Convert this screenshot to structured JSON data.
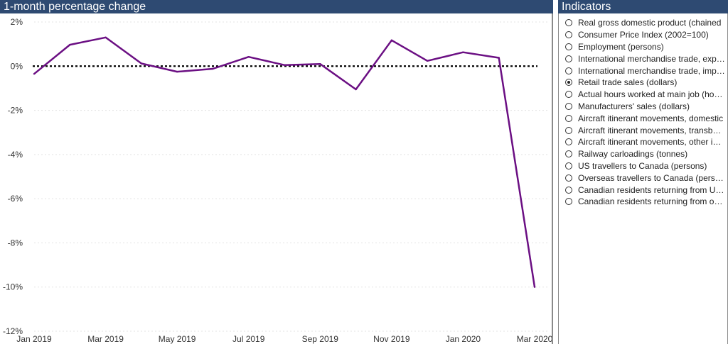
{
  "chart_panel": {
    "title": "1-month percentage change"
  },
  "indicators_panel": {
    "title": "Indicators",
    "items": [
      {
        "label": "Real gross domestic product (chained",
        "selected": false
      },
      {
        "label": "Consumer Price Index (2002=100)",
        "selected": false
      },
      {
        "label": "Employment (persons)",
        "selected": false
      },
      {
        "label": "International merchandise trade, exports",
        "selected": false
      },
      {
        "label": "International merchandise trade, imports",
        "selected": false
      },
      {
        "label": "Retail trade sales (dollars)",
        "selected": true
      },
      {
        "label": "Actual hours worked at main job (hours)",
        "selected": false
      },
      {
        "label": "Manufacturers' sales (dollars)",
        "selected": false
      },
      {
        "label": "Aircraft itinerant movements, domestic",
        "selected": false
      },
      {
        "label": "Aircraft itinerant movements, transborder",
        "selected": false
      },
      {
        "label": "Aircraft itinerant movements, other international",
        "selected": false
      },
      {
        "label": "Railway carloadings (tonnes)",
        "selected": false
      },
      {
        "label": "US travellers to Canada (persons)",
        "selected": false
      },
      {
        "label": "Overseas travellers to Canada (persons)",
        "selected": false
      },
      {
        "label": "Canadian residents returning from United States",
        "selected": false
      },
      {
        "label": "Canadian residents returning from overseas",
        "selected": false
      }
    ]
  },
  "chart_data": {
    "type": "line",
    "title": "1-month percentage change",
    "x": [
      "Jan 2019",
      "Feb 2019",
      "Mar 2019",
      "Apr 2019",
      "May 2019",
      "Jun 2019",
      "Jul 2019",
      "Aug 2019",
      "Sep 2019",
      "Oct 2019",
      "Nov 2019",
      "Dec 2019",
      "Jan 2020",
      "Feb 2020",
      "Mar 2020"
    ],
    "x_tick_labels": [
      "Jan 2019",
      "Mar 2019",
      "May 2019",
      "Jul 2019",
      "Sep 2019",
      "Nov 2019",
      "Jan 2020",
      "Mar 2020"
    ],
    "y_tick_labels": [
      "2%",
      "0%",
      "-2%",
      "-4%",
      "-6%",
      "-8%",
      "-10%",
      "-12%"
    ],
    "y_ticks": [
      2,
      0,
      -2,
      -4,
      -6,
      -8,
      -10,
      -12
    ],
    "ylim": [
      -12,
      2
    ],
    "grid": true,
    "reference_line": {
      "y": 0,
      "style": "dotted",
      "color": "#000000"
    },
    "series": [
      {
        "values": [
          -0.35,
          0.97,
          1.3,
          0.12,
          -0.25,
          -0.12,
          0.42,
          0.05,
          0.1,
          -1.05,
          1.17,
          0.24,
          0.63,
          0.38,
          -10.0
        ],
        "color": "#6b0f83"
      }
    ]
  }
}
